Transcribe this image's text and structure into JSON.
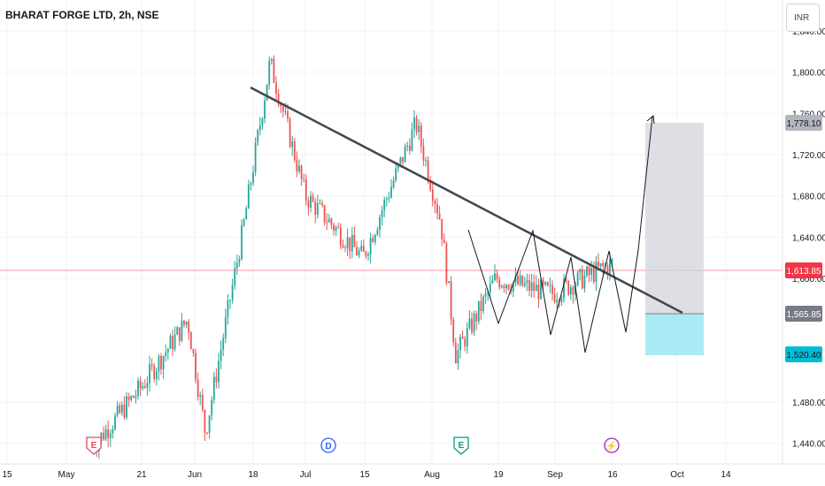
{
  "header": {
    "title": "BHARAT FORGE LTD, 2h, NSE",
    "currency_button": "INR"
  },
  "y_axis": {
    "ticks": [
      "1,840.00",
      "1,800.00",
      "1,760.00",
      "1,720.00",
      "1,680.00",
      "1,640.00",
      "1,600.00",
      "1,480.00",
      "1,440.00"
    ]
  },
  "x_axis": {
    "labels": [
      "15",
      "May",
      "21",
      "Jun",
      "18",
      "Jul",
      "15",
      "Aug",
      "19",
      "Sep",
      "16",
      "Oct",
      "14"
    ]
  },
  "price_tags": {
    "target": "1,778.10",
    "current": "1,613.85",
    "entry": "1,565.85",
    "stop": "1,520.40"
  },
  "events": [
    {
      "name": "earnings-event-may",
      "glyph": "E",
      "color": "#e84a5f"
    },
    {
      "name": "dividend-event-jul",
      "glyph": "D",
      "color": "#2962ff"
    },
    {
      "name": "earnings-event-aug",
      "glyph": "E",
      "color": "#089981"
    },
    {
      "name": "split-event-sep",
      "glyph": "⚡",
      "color": "#9c27b0"
    }
  ],
  "colors": {
    "up": "#26a69a",
    "down": "#ef5350",
    "current_line": "#f23645",
    "target_zone": "#d1d4dc",
    "stop_zone": "#8ee3f0",
    "trendline": "#434651"
  },
  "chart_data": {
    "type": "candlestick",
    "symbol": "BHARAT FORGE LTD",
    "interval": "2h",
    "exchange": "NSE",
    "current_price": 1613.85,
    "ylim": [
      1420,
      1870
    ],
    "annotations": {
      "descending_trendline": {
        "from": [
          "Jun 20",
          1815
        ],
        "to": [
          "Sep 25",
          1572
        ]
      },
      "long_position": {
        "entry": 1565.85,
        "target": 1778.1,
        "stop": 1520.4
      }
    },
    "approx_close_path": [
      {
        "x": "May 10",
        "y": 1440
      },
      {
        "x": "May 21",
        "y": 1495
      },
      {
        "x": "Jun 01",
        "y": 1560
      },
      {
        "x": "Jun 05",
        "y": 1450
      },
      {
        "x": "Jun 14",
        "y": 1650
      },
      {
        "x": "Jun 20",
        "y": 1810
      },
      {
        "x": "Jul 01",
        "y": 1680
      },
      {
        "x": "Jul 15",
        "y": 1620
      },
      {
        "x": "Jul 29",
        "y": 1750
      },
      {
        "x": "Aug 01",
        "y": 1655
      },
      {
        "x": "Aug 06",
        "y": 1525
      },
      {
        "x": "Aug 19",
        "y": 1600
      },
      {
        "x": "Sep 02",
        "y": 1585
      },
      {
        "x": "Sep 16",
        "y": 1614
      }
    ]
  }
}
